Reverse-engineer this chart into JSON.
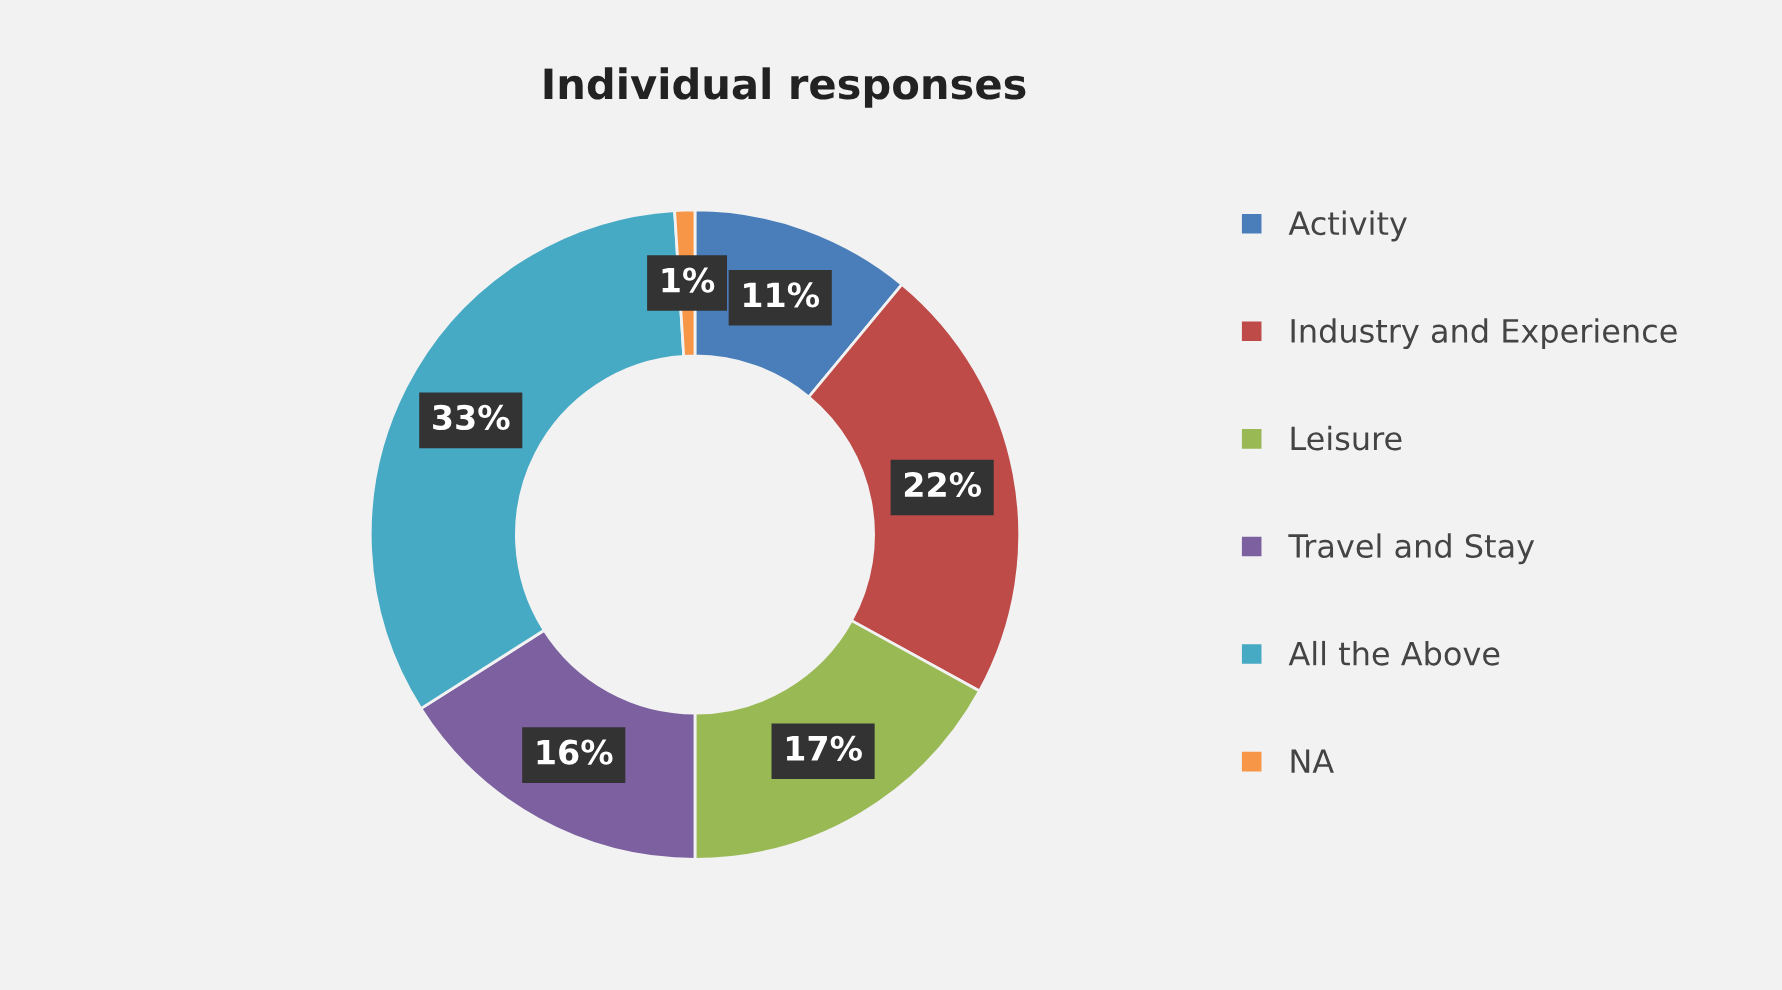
{
  "chart_data": {
    "type": "donut",
    "title": "Individual responses",
    "categories": [
      "Activity",
      "Industry and Experience",
      "Leisure",
      "Travel and Stay",
      "All the Above",
      "NA"
    ],
    "values": [
      11,
      22,
      17,
      16,
      33,
      1
    ],
    "colors": [
      "#4a7ebb",
      "#be4b48",
      "#98b954",
      "#7d60a0",
      "#46aac5",
      "#f79646"
    ],
    "value_labels": [
      "11%",
      "22%",
      "17%",
      "16%",
      "33%",
      "1%"
    ],
    "legend": "right"
  }
}
